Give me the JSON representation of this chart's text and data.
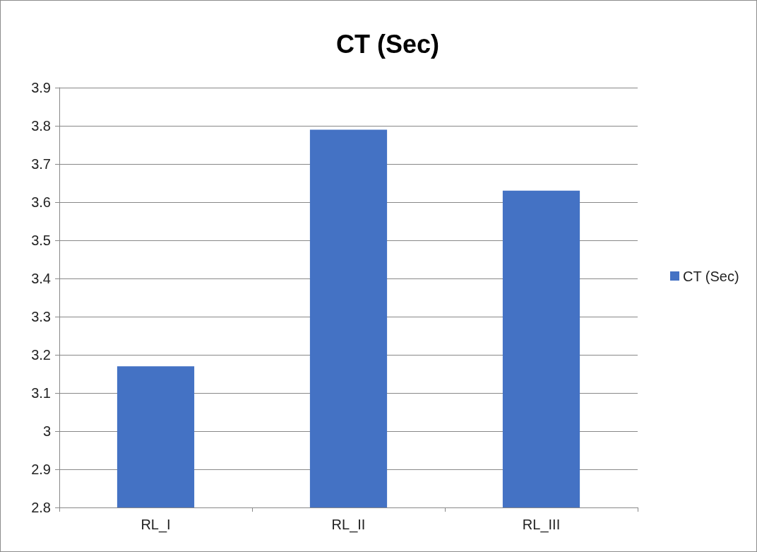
{
  "chart_data": {
    "type": "bar",
    "title": "CT (Sec)",
    "categories": [
      "RL_I",
      "RL_II",
      "RL_III"
    ],
    "series": [
      {
        "name": "CT (Sec)",
        "color": "#4472c4",
        "values": [
          3.17,
          3.79,
          3.63
        ]
      }
    ],
    "ylim": [
      2.8,
      3.9
    ],
    "yticks": [
      2.8,
      2.9,
      3,
      3.1,
      3.2,
      3.3,
      3.4,
      3.5,
      3.6,
      3.7,
      3.8,
      3.9
    ],
    "grid": "y",
    "legend": "right"
  }
}
